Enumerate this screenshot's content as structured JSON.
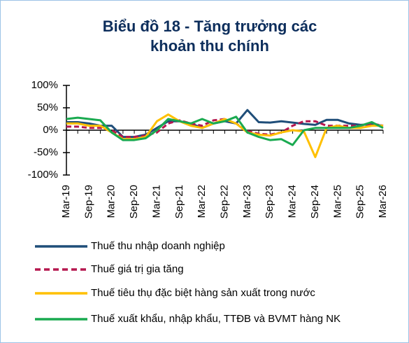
{
  "chart_data": {
    "type": "line",
    "title": "Biểu đồ 18 - Tăng trưởng các khoản thu chính",
    "categories": [
      "Mar-19",
      null,
      "Sep-19",
      null,
      "Mar-20",
      null,
      "Sep-20",
      null,
      "Mar-21",
      null,
      "Sep-21",
      null,
      "Mar-22",
      null,
      "Sep-22",
      null,
      "Mar-23",
      null,
      "Sep-23",
      null,
      "Mar-24",
      null,
      "Sep-24",
      null,
      "Mar-25",
      null,
      "Sep-25",
      null,
      "Mar-26"
    ],
    "ylim": [
      -100,
      100
    ],
    "yticks": [
      {
        "value": 100,
        "label": "100%"
      },
      {
        "value": 50,
        "label": "50%"
      },
      {
        "value": 0,
        "label": "0%"
      },
      {
        "value": -50,
        "label": "-50%"
      },
      {
        "value": -100,
        "label": "-100%"
      }
    ],
    "series": [
      {
        "name": "Thuế thu nhập doanh nghiệp",
        "color": "#1f4e79",
        "dashed": false,
        "values": [
          18,
          18,
          15,
          10,
          10,
          -15,
          -15,
          -10,
          5,
          20,
          20,
          15,
          5,
          15,
          20,
          15,
          45,
          18,
          17,
          20,
          17,
          14,
          12,
          23,
          23,
          15,
          12,
          13,
          10
        ]
      },
      {
        "name": "Thuế giá trị gia tăng",
        "color": "#b5174e",
        "dashed": true,
        "values": [
          8,
          8,
          5,
          5,
          0,
          -15,
          -15,
          -12,
          -5,
          15,
          22,
          15,
          10,
          22,
          25,
          15,
          -2,
          -8,
          -10,
          -5,
          10,
          20,
          20,
          10,
          10,
          10,
          10,
          15,
          10
        ]
      },
      {
        "name": "Thuế tiêu thụ đặc biệt hàng sản xuất trong nước",
        "color": "#ffc000",
        "dashed": false,
        "values": [
          15,
          15,
          10,
          10,
          -5,
          -20,
          -20,
          -15,
          20,
          35,
          20,
          10,
          5,
          15,
          25,
          15,
          -5,
          -10,
          -12,
          -5,
          0,
          -3,
          -60,
          5,
          10,
          5,
          5,
          10,
          10
        ]
      },
      {
        "name": "Thuế xuất khẩu, nhập khẩu, TTĐB và BVMT hàng NK",
        "color": "#1aaa50",
        "dashed": false,
        "values": [
          25,
          28,
          25,
          22,
          -5,
          -22,
          -22,
          -18,
          0,
          25,
          20,
          15,
          25,
          15,
          20,
          30,
          -5,
          -15,
          -22,
          -20,
          -33,
          0,
          5,
          5,
          5,
          5,
          10,
          18,
          5
        ]
      }
    ]
  }
}
